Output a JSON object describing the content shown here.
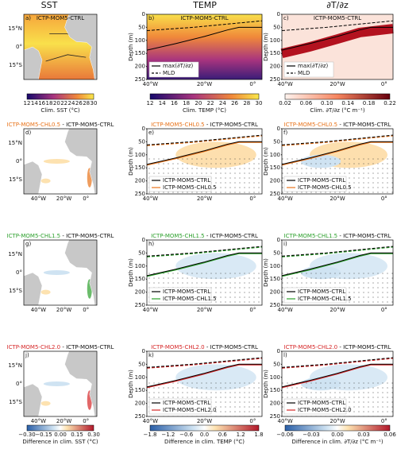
{
  "column_titles": [
    "SST",
    "TEMP",
    "∂T/∂z"
  ],
  "map_lat_ticks": [
    "15°N",
    "0°",
    "15°S"
  ],
  "lon_ticks": [
    "40°W",
    "20°W",
    "0°"
  ],
  "depth_label": "Depth (m)",
  "depth_ticks": [
    0,
    50,
    100,
    150,
    200,
    250
  ],
  "rows": [
    {
      "title": "ICTP-MOM5-CTRL",
      "letters": [
        "a)",
        "b)",
        "c)"
      ],
      "legend": [
        "max(∂T/∂z)",
        "MLD"
      ]
    },
    {
      "experiment": "ICTP-MOM5-CHL0.5",
      "reference": " - ICTP-MOM5-CTRL",
      "color": "#e8731a",
      "letters": [
        "d)",
        "e)",
        "f)"
      ],
      "legend": [
        "ICTP-MOM5-CTRL",
        "ICTP-MOM5-CHL0.5"
      ]
    },
    {
      "experiment": "ICTP-MOM5-CHL1.5",
      "reference": " - ICTP-MOM5-CTRL",
      "color": "#2ca02c",
      "letters": [
        "g)",
        "h)",
        "i)"
      ],
      "legend": [
        "ICTP-MOM5-CTRL",
        "ICTP-MOM5-CHL1.5"
      ]
    },
    {
      "experiment": "ICTP-MOM5-CHL2.0",
      "reference": " - ICTP-MOM5-CTRL",
      "color": "#d62728",
      "letters": [
        "j)",
        "k)",
        "l)"
      ],
      "legend": [
        "ICTP-MOM5-CTRL",
        "ICTP-MOM5-CHL2.0"
      ]
    }
  ],
  "colorbars_top": [
    {
      "ticks": [
        12,
        14,
        16,
        18,
        20,
        22,
        24,
        26,
        28,
        30
      ],
      "label": "Clim. SST (°C)"
    },
    {
      "ticks": [
        12,
        14,
        16,
        18,
        20,
        22,
        24,
        26,
        28,
        30
      ],
      "label": "Clim. TEMP (°C)"
    },
    {
      "ticks": [
        "0.02",
        "0.06",
        "0.10",
        "0.14",
        "0.18",
        "0.22"
      ],
      "label": "Clim. ∂T/∂z (°C m⁻¹)"
    }
  ],
  "colorbars_bottom": [
    {
      "ticks": [
        "−0.30",
        "−0.15",
        "0.00",
        "0.15",
        "0.30"
      ],
      "label": "Difference in clim. SST (°C)"
    },
    {
      "ticks": [
        "−1.8",
        "−1.2",
        "−0.6",
        "0.0",
        "0.6",
        "1.2",
        "1.8"
      ],
      "label": "Difference in clim. TEMP (°C)"
    },
    {
      "ticks": [
        "−0.06",
        "−0.03",
        "0.00",
        "0.03",
        "0.06"
      ],
      "label": "Difference in clim. ∂T/∂z (°C m⁻¹)"
    }
  ]
}
